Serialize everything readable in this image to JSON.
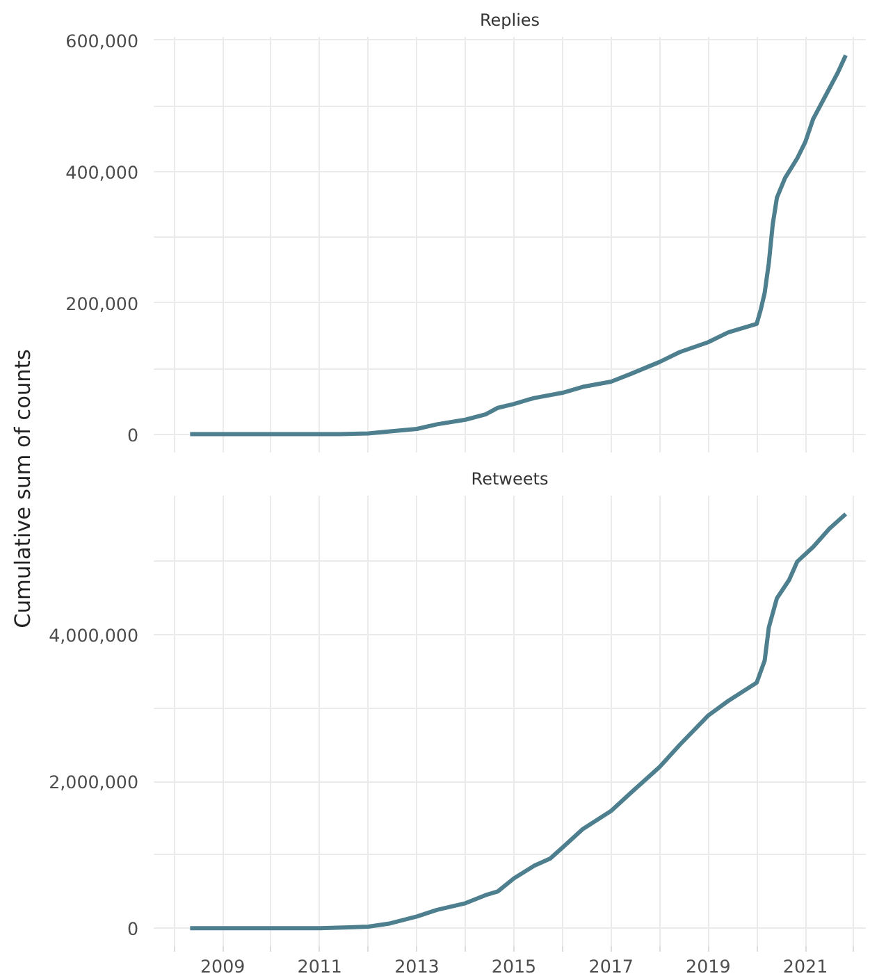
{
  "chart_data": [
    {
      "type": "line",
      "title": "Replies",
      "ylabel": "Cumulative sum of counts",
      "grid": true,
      "tick_labels": "y",
      "line_style": "solid",
      "marker": "none",
      "x": [
        "2008-05",
        "2011-06",
        "2012-01",
        "2012-06",
        "2013-01",
        "2013-06",
        "2014-01",
        "2014-06",
        "2014-09",
        "2015-01",
        "2015-06",
        "2016-01",
        "2016-06",
        "2017-01",
        "2017-06",
        "2018-01",
        "2018-06",
        "2019-01",
        "2019-06",
        "2020-01",
        "2020-02",
        "2020-03",
        "2020-04",
        "2020-05",
        "2020-06",
        "2020-08",
        "2020-11",
        "2021-01",
        "2021-03",
        "2021-06",
        "2021-09",
        "2021-11"
      ],
      "series": [
        {
          "color": "#4e7f8e",
          "values": [
            0,
            0,
            1000,
            4000,
            8000,
            15000,
            22000,
            30000,
            40000,
            46000,
            55000,
            63000,
            72000,
            80000,
            92000,
            110000,
            125000,
            140000,
            155000,
            168000,
            190000,
            215000,
            260000,
            320000,
            360000,
            390000,
            420000,
            445000,
            480000,
            515000,
            550000,
            577000
          ]
        }
      ],
      "xlim": [
        "2007-08",
        "2022-04"
      ],
      "xticks": [
        {
          "value": "2008",
          "label": null
        },
        {
          "value": "2009",
          "label": null
        },
        {
          "value": "2010",
          "label": null
        },
        {
          "value": "2011",
          "label": null
        },
        {
          "value": "2012",
          "label": null
        },
        {
          "value": "2013",
          "label": null
        },
        {
          "value": "2014",
          "label": null
        },
        {
          "value": "2015",
          "label": null
        },
        {
          "value": "2016",
          "label": null
        },
        {
          "value": "2017",
          "label": null
        },
        {
          "value": "2018",
          "label": null
        },
        {
          "value": "2019",
          "label": null
        },
        {
          "value": "2020",
          "label": null
        },
        {
          "value": "2021",
          "label": null
        },
        {
          "value": "2022",
          "label": null
        }
      ],
      "ylim": [
        -28000,
        605000
      ],
      "yticks": [
        0,
        {
          "value": 100000,
          "label": null
        },
        {
          "value": 200000,
          "label": "200,000"
        },
        {
          "value": 300000,
          "label": null
        },
        {
          "value": 400000,
          "label": "400,000"
        },
        {
          "value": 500000,
          "label": null
        },
        {
          "value": 600000,
          "label": "600,000"
        }
      ]
    },
    {
      "type": "line",
      "title": "Retweets",
      "grid": true,
      "line_style": "solid",
      "marker": "none",
      "x": [
        "2008-05",
        "2011-01",
        "2012-01",
        "2012-06",
        "2013-01",
        "2013-06",
        "2014-01",
        "2014-06",
        "2014-09",
        "2015-01",
        "2015-06",
        "2015-10",
        "2016-01",
        "2016-06",
        "2017-01",
        "2017-06",
        "2018-01",
        "2018-06",
        "2019-01",
        "2019-06",
        "2020-01",
        "2020-03",
        "2020-04",
        "2020-06",
        "2020-09",
        "2020-11",
        "2021-03",
        "2021-07",
        "2021-11"
      ],
      "series": [
        {
          "color": "#4e7f8e",
          "values": [
            0,
            0,
            20000,
            60000,
            160000,
            250000,
            340000,
            450000,
            500000,
            680000,
            850000,
            950000,
            1100000,
            1350000,
            1600000,
            1850000,
            2200000,
            2500000,
            2900000,
            3100000,
            3350000,
            3650000,
            4100000,
            4500000,
            4750000,
            5000000,
            5200000,
            5450000,
            5650000
          ]
        }
      ],
      "xlim": [
        "2007-08",
        "2022-04"
      ],
      "xticks": [
        {
          "value": "2008",
          "label": null
        },
        {
          "value": "2009",
          "label": "2009"
        },
        {
          "value": "2010",
          "label": null
        },
        {
          "value": "2011",
          "label": "2011"
        },
        {
          "value": "2012",
          "label": null
        },
        {
          "value": "2013",
          "label": "2013"
        },
        {
          "value": "2014",
          "label": null
        },
        {
          "value": "2015",
          "label": "2015"
        },
        {
          "value": "2016",
          "label": null
        },
        {
          "value": "2017",
          "label": "2017"
        },
        {
          "value": "2018",
          "label": null
        },
        {
          "value": "2019",
          "label": "2019"
        },
        {
          "value": "2020",
          "label": null
        },
        {
          "value": "2021",
          "label": "2021"
        },
        {
          "value": "2022",
          "label": null
        }
      ],
      "ylim": [
        -245000,
        5900000
      ],
      "yticks": [
        0,
        {
          "value": 1000000,
          "label": null
        },
        {
          "value": 2000000,
          "label": "2,000,000"
        },
        {
          "value": 3000000,
          "label": null
        },
        {
          "value": 4000000,
          "label": "4,000,000"
        },
        {
          "value": 5000000,
          "label": null
        }
      ]
    }
  ]
}
